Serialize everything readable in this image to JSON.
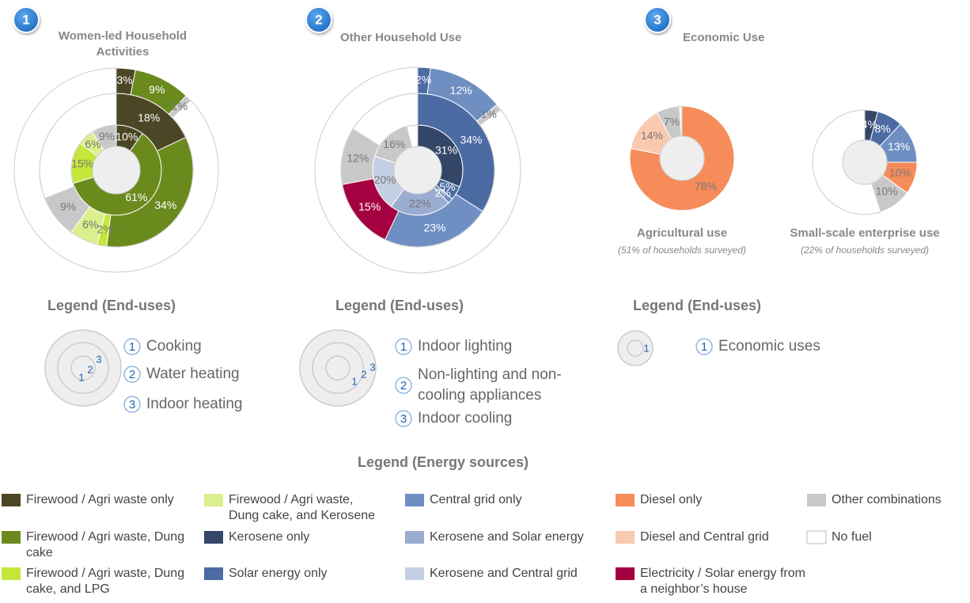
{
  "sections": [
    {
      "number": "1",
      "title": "Women-led Household Activities"
    },
    {
      "number": "2",
      "title": "Other Household Use"
    },
    {
      "number": "3",
      "title": "Economic Use"
    }
  ],
  "chart_data": [
    {
      "type": "donut",
      "rings": [
        {
          "values": [
            10,
            61,
            15,
            6,
            9
          ],
          "value_labels": [
            "10%",
            "61%",
            "15%",
            "6%",
            "9%"
          ],
          "colors": [
            "#4b4626",
            "#6b8a1e",
            "#c5e63a",
            "#dcef8e",
            "#c8c8c8"
          ]
        },
        {
          "values": [
            18,
            34,
            2,
            6,
            9,
            31
          ],
          "value_labels": [
            "18%",
            "34%",
            "2%",
            "6%",
            "9%",
            null
          ],
          "colors": [
            "#4b4626",
            "#6b8a1e",
            "#c5e63a",
            "#dcef8e",
            "#c8c8c8",
            "#ffffff"
          ]
        },
        {
          "values": [
            3,
            9,
            1,
            87
          ],
          "value_labels": [
            "3%",
            "9%",
            "1%",
            null
          ],
          "colors": [
            "#4b4626",
            "#6b8a1e",
            "#c8c8c8",
            "#ffffff"
          ]
        }
      ]
    },
    {
      "type": "donut",
      "rings": [
        {
          "values": [
            31,
            5,
            2,
            22,
            20,
            16,
            4
          ],
          "value_labels": [
            "31%",
            "5%",
            "2%",
            "22%",
            "20%",
            "16%",
            null
          ],
          "colors": [
            "#344667",
            "#4c6ba3",
            "#6f8fc3",
            "#9aaccf",
            "#c4cfe3",
            "#c8c8c8",
            "#ffffff"
          ]
        },
        {
          "values": [
            34,
            23,
            15,
            12,
            16
          ],
          "value_labels": [
            "34%",
            "23%",
            "15%",
            "12%",
            null
          ],
          "colors": [
            "#4c6ba3",
            "#6f8fc3",
            "#a5003f",
            "#c8c8c8",
            "#ffffff"
          ]
        },
        {
          "values": [
            2,
            12,
            1,
            85
          ],
          "value_labels": [
            "2%",
            "12%",
            "1%",
            null
          ],
          "colors": [
            "#4c6ba3",
            "#6f8fc3",
            "#c8c8c8",
            "#ffffff"
          ]
        }
      ]
    },
    {
      "type": "donut",
      "title": "Agricultural use",
      "subtitle": "(51% of households surveyed)",
      "rings": [
        {
          "values": [
            78,
            14,
            7,
            1
          ],
          "value_labels": [
            "78%",
            "14%",
            "7%",
            null
          ],
          "colors": [
            "#f68c5a",
            "#f9c9b0",
            "#c8c8c8",
            "#ffffff"
          ]
        }
      ]
    },
    {
      "type": "donut",
      "title": "Small-scale enterprise use",
      "subtitle": "(22% of households surveyed)",
      "rings": [
        {
          "values": [
            4,
            8,
            13,
            10,
            10,
            55
          ],
          "value_labels": [
            "4%",
            "8%",
            "13%",
            "10%",
            "10%",
            null
          ],
          "colors": [
            "#344667",
            "#4c6ba3",
            "#6f8fc3",
            "#f68c5a",
            "#c8c8c8",
            "#ffffff"
          ]
        }
      ]
    }
  ],
  "end_use_legends": [
    {
      "title": "Legend (End-uses)",
      "items": [
        {
          "number": "1",
          "label": "Cooking"
        },
        {
          "number": "2",
          "label": "Water heating"
        },
        {
          "number": "3",
          "label": "Indoor heating"
        }
      ]
    },
    {
      "title": "Legend (End-uses)",
      "items": [
        {
          "number": "1",
          "label": "Indoor lighting"
        },
        {
          "number": "2",
          "label": "Non-lighting and non-cooling appliances"
        },
        {
          "number": "3",
          "label": "Indoor cooling"
        }
      ]
    },
    {
      "title": "Legend (End-uses)",
      "items": [
        {
          "number": "1",
          "label": "Economic uses"
        }
      ]
    }
  ],
  "energy_legend": {
    "title": "Legend (Energy sources)",
    "items": [
      {
        "label": "Firewood / Agri waste only",
        "color": "#4b4626"
      },
      {
        "label": "Firewood / Agri waste, Dung cake, and Kerosene",
        "color": "#dcef8e"
      },
      {
        "label": "Central grid only",
        "color": "#6f8fc3"
      },
      {
        "label": "Diesel only",
        "color": "#f68c5a"
      },
      {
        "label": "Other combinations",
        "color": "#c8c8c8"
      },
      {
        "label": "Firewood / Agri waste, Dung cake",
        "color": "#6b8a1e"
      },
      {
        "label": "Kerosene only",
        "color": "#344667"
      },
      {
        "label": "Kerosene and Solar energy",
        "color": "#9aaccf"
      },
      {
        "label": "Diesel and Central grid",
        "color": "#f9c9b0"
      },
      {
        "label": "No fuel",
        "color": "#ffffff"
      },
      {
        "label": "Firewood / Agri waste, Dung cake, and LPG",
        "color": "#c5e63a"
      },
      {
        "label": "Solar energy only",
        "color": "#4c6ba3"
      },
      {
        "label": "Kerosene and Central grid",
        "color": "#c4cfe3"
      },
      {
        "label": "Electricity / Solar energy from a neighbor’s house",
        "color": "#a5003f"
      }
    ]
  }
}
